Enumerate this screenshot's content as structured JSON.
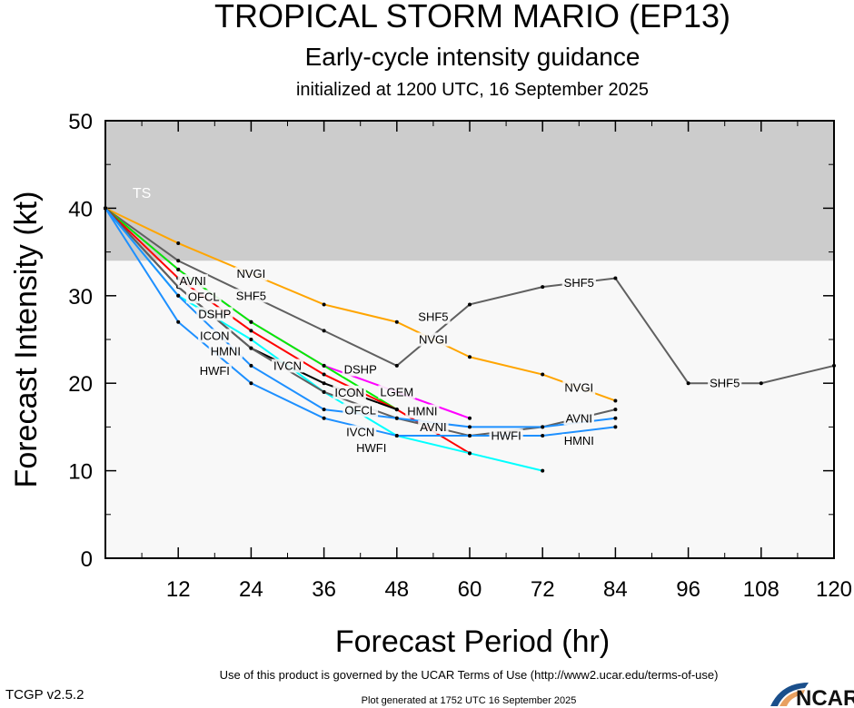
{
  "chart_data": {
    "type": "line",
    "title": "TROPICAL STORM MARIO (EP13)",
    "subtitle": "Early-cycle intensity guidance",
    "subtitle2": "initialized at 1200 UTC, 16 September 2025",
    "xlabel": "Forecast Period (hr)",
    "ylabel": "Forecast Intensity (kt)",
    "xlim": [
      0,
      120
    ],
    "ylim": [
      0,
      50
    ],
    "xticks": [
      "12",
      "24",
      "36",
      "48",
      "60",
      "72",
      "84",
      "96",
      "108",
      "120"
    ],
    "yticks": [
      "0",
      "10",
      "20",
      "30",
      "40",
      "50"
    ],
    "bands": [
      {
        "name": "TS",
        "from": 34,
        "to": 50,
        "color": "#cccccc"
      }
    ],
    "series": [
      {
        "name": "NVGI",
        "color": "#ffa500",
        "points": [
          [
            0,
            40
          ],
          [
            12,
            36
          ],
          [
            36,
            29
          ],
          [
            48,
            27
          ],
          [
            60,
            23
          ],
          [
            72,
            21
          ],
          [
            84,
            18
          ]
        ],
        "labels_at": [
          1,
          3,
          5
        ]
      },
      {
        "name": "SHF5",
        "color": "#606060",
        "points": [
          [
            0,
            40
          ],
          [
            12,
            34
          ],
          [
            36,
            26
          ],
          [
            48,
            22
          ],
          [
            60,
            29
          ],
          [
            72,
            31
          ],
          [
            84,
            32
          ],
          [
            96,
            20
          ],
          [
            108,
            20
          ],
          [
            120,
            22
          ]
        ],
        "labels_at": [
          1,
          3,
          5,
          7
        ]
      },
      {
        "name": "LGEM",
        "color": "#ff00ff",
        "points": [
          [
            0,
            40
          ],
          [
            12,
            33
          ],
          [
            24,
            27
          ],
          [
            36,
            22
          ],
          [
            60,
            16
          ]
        ],
        "labels_at": [
          3
        ]
      },
      {
        "name": "DSHP",
        "color": "#00ee00",
        "points": [
          [
            0,
            40
          ],
          [
            12,
            33
          ],
          [
            24,
            27
          ],
          [
            36,
            22
          ],
          [
            48,
            17
          ]
        ],
        "labels_at": [
          1,
          3
        ]
      },
      {
        "name": "OFCL",
        "color": "#ff0000",
        "points": [
          [
            0,
            40
          ],
          [
            12,
            32
          ],
          [
            24,
            26
          ],
          [
            36,
            21
          ],
          [
            48,
            17
          ],
          [
            60,
            12
          ]
        ],
        "labels_at": [
          1,
          3
        ]
      },
      {
        "name": "ICON",
        "color": "#000000",
        "points": [
          [
            0,
            40
          ],
          [
            12,
            31
          ],
          [
            24,
            24
          ],
          [
            36,
            20
          ],
          [
            48,
            17
          ]
        ],
        "labels_at": [
          1,
          3
        ]
      },
      {
        "name": "IVCN",
        "color": "#00ffff",
        "points": [
          [
            0,
            40
          ],
          [
            12,
            30
          ],
          [
            24,
            25
          ],
          [
            36,
            19
          ],
          [
            48,
            14
          ],
          [
            60,
            12
          ],
          [
            72,
            10
          ]
        ],
        "labels_at": [
          1,
          3
        ]
      },
      {
        "name": "AVNI",
        "color": "#606060",
        "points": [
          [
            0,
            40
          ],
          [
            12,
            31
          ],
          [
            24,
            24
          ],
          [
            36,
            19
          ],
          [
            48,
            16
          ],
          [
            60,
            14
          ],
          [
            72,
            15
          ],
          [
            84,
            17
          ]
        ],
        "labels_at": [
          1,
          3,
          6
        ]
      },
      {
        "name": "HMNI",
        "color": "#1e90ff",
        "points": [
          [
            0,
            40
          ],
          [
            12,
            30
          ],
          [
            24,
            22
          ],
          [
            36,
            17
          ],
          [
            48,
            16
          ],
          [
            60,
            15
          ],
          [
            72,
            15
          ],
          [
            84,
            16
          ]
        ],
        "labels_at": [
          1,
          3,
          6
        ]
      },
      {
        "name": "HWFI",
        "color": "#1e90ff",
        "points": [
          [
            0,
            40
          ],
          [
            12,
            27
          ],
          [
            24,
            20
          ],
          [
            36,
            16
          ],
          [
            48,
            14
          ],
          [
            60,
            14
          ],
          [
            72,
            14
          ],
          [
            84,
            15
          ]
        ],
        "labels_at": [
          1,
          3,
          6
        ]
      }
    ]
  },
  "footer": {
    "version": "TCGP v2.5.2",
    "terms": "Use of this product is governed by the UCAR Terms of Use (http://www2.ucar.edu/terms-of-use)",
    "generated": "Plot generated at 1752 UTC   16 September 2025",
    "logo": "NCAR"
  }
}
